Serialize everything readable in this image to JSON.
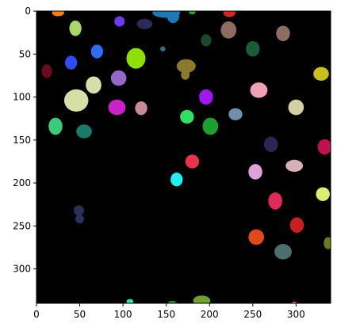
{
  "figure": {
    "background": "#ffffff",
    "image_background": "#000000",
    "image_extent": [
      0,
      340
    ]
  },
  "axes": {
    "x_ticks": [
      {
        "value": 0,
        "label": "0"
      },
      {
        "value": 50,
        "label": "50"
      },
      {
        "value": 100,
        "label": "100"
      },
      {
        "value": 150,
        "label": "150"
      },
      {
        "value": 200,
        "label": "200"
      },
      {
        "value": 250,
        "label": "250"
      },
      {
        "value": 300,
        "label": "300"
      }
    ],
    "y_ticks": [
      {
        "value": 0,
        "label": "0"
      },
      {
        "value": 50,
        "label": "50"
      },
      {
        "value": 100,
        "label": "100"
      },
      {
        "value": 150,
        "label": "150"
      },
      {
        "value": 200,
        "label": "200"
      },
      {
        "value": 250,
        "label": "250"
      },
      {
        "value": 300,
        "label": "300"
      }
    ]
  },
  "blobs": [
    {
      "x": 25,
      "y": 2,
      "rx": 7,
      "ry": 4,
      "color": "#ff7f0e"
    },
    {
      "x": 45,
      "y": 20,
      "rx": 7,
      "ry": 9,
      "color": "#a6d96a"
    },
    {
      "x": 96,
      "y": 12,
      "rx": 6,
      "ry": 6,
      "color": "#6a3df0"
    },
    {
      "x": 125,
      "y": 15,
      "rx": 9,
      "ry": 6,
      "color": "#2d2a5a"
    },
    {
      "x": 150,
      "y": 2,
      "rx": 16,
      "ry": 6,
      "color": "#1f77b4"
    },
    {
      "x": 158,
      "y": 6,
      "rx": 7,
      "ry": 8,
      "color": "#1f77b4"
    },
    {
      "x": 180,
      "y": 1,
      "rx": 4,
      "ry": 3,
      "color": "#2ca02c"
    },
    {
      "x": 223,
      "y": 2,
      "rx": 7,
      "ry": 5,
      "color": "#d62728"
    },
    {
      "x": 222,
      "y": 22,
      "rx": 9,
      "ry": 10,
      "color": "#8c6d62"
    },
    {
      "x": 196,
      "y": 34,
      "rx": 6,
      "ry": 7,
      "color": "#1a4a2e"
    },
    {
      "x": 285,
      "y": 26,
      "rx": 8,
      "ry": 9,
      "color": "#8c6d62"
    },
    {
      "x": 250,
      "y": 44,
      "rx": 8,
      "ry": 9,
      "color": "#1a5c3a"
    },
    {
      "x": 70,
      "y": 47,
      "rx": 7,
      "ry": 8,
      "color": "#2f6cf6"
    },
    {
      "x": 146,
      "y": 44,
      "rx": 3,
      "ry": 3,
      "color": "#3a6a8a"
    },
    {
      "x": 115,
      "y": 55,
      "rx": 11,
      "ry": 12,
      "color": "#8ee000"
    },
    {
      "x": 12,
      "y": 70,
      "rx": 6,
      "ry": 8,
      "color": "#6a0a20"
    },
    {
      "x": 40,
      "y": 60,
      "rx": 7,
      "ry": 8,
      "color": "#2f4cf6"
    },
    {
      "x": 173,
      "y": 64,
      "rx": 11,
      "ry": 8,
      "color": "#8b7a2e"
    },
    {
      "x": 172,
      "y": 74,
      "rx": 5,
      "ry": 6,
      "color": "#8b7a2e"
    },
    {
      "x": 329,
      "y": 73,
      "rx": 9,
      "ry": 8,
      "color": "#c9c020"
    },
    {
      "x": 66,
      "y": 86,
      "rx": 9,
      "ry": 10,
      "color": "#d4e0a6"
    },
    {
      "x": 95,
      "y": 78,
      "rx": 9,
      "ry": 9,
      "color": "#9468c8"
    },
    {
      "x": 46,
      "y": 104,
      "rx": 14,
      "ry": 13,
      "color": "#d4e0a6"
    },
    {
      "x": 93,
      "y": 112,
      "rx": 10,
      "ry": 9,
      "color": "#c823c8"
    },
    {
      "x": 121,
      "y": 113,
      "rx": 7,
      "ry": 8,
      "color": "#c98a98"
    },
    {
      "x": 196,
      "y": 100,
      "rx": 8,
      "ry": 9,
      "color": "#a117f0"
    },
    {
      "x": 257,
      "y": 92,
      "rx": 10,
      "ry": 9,
      "color": "#f0a0b4"
    },
    {
      "x": 300,
      "y": 112,
      "rx": 9,
      "ry": 9,
      "color": "#d4d0a0"
    },
    {
      "x": 174,
      "y": 123,
      "rx": 8,
      "ry": 8,
      "color": "#30e060"
    },
    {
      "x": 230,
      "y": 120,
      "rx": 8,
      "ry": 7,
      "color": "#7090b0"
    },
    {
      "x": 22,
      "y": 134,
      "rx": 8,
      "ry": 10,
      "color": "#3acb7a"
    },
    {
      "x": 55,
      "y": 140,
      "rx": 9,
      "ry": 8,
      "color": "#1a7a6a"
    },
    {
      "x": 201,
      "y": 134,
      "rx": 9,
      "ry": 10,
      "color": "#1ea030"
    },
    {
      "x": 271,
      "y": 155,
      "rx": 8,
      "ry": 9,
      "color": "#272754"
    },
    {
      "x": 333,
      "y": 158,
      "rx": 8,
      "ry": 9,
      "color": "#c01050"
    },
    {
      "x": 180,
      "y": 175,
      "rx": 8,
      "ry": 8,
      "color": "#e8344a"
    },
    {
      "x": 253,
      "y": 187,
      "rx": 8,
      "ry": 9,
      "color": "#e0a0d8"
    },
    {
      "x": 298,
      "y": 180,
      "rx": 10,
      "ry": 7,
      "color": "#d8b0b8"
    },
    {
      "x": 162,
      "y": 196,
      "rx": 7,
      "ry": 8,
      "color": "#20f0f0"
    },
    {
      "x": 331,
      "y": 213,
      "rx": 8,
      "ry": 8,
      "color": "#d8f070"
    },
    {
      "x": 49,
      "y": 232,
      "rx": 6,
      "ry": 6,
      "color": "#2b2f5a"
    },
    {
      "x": 50,
      "y": 242,
      "rx": 5,
      "ry": 5,
      "color": "#2b2f5a"
    },
    {
      "x": 276,
      "y": 221,
      "rx": 8,
      "ry": 10,
      "color": "#e02a5a"
    },
    {
      "x": 301,
      "y": 249,
      "rx": 8,
      "ry": 9,
      "color": "#c81f1f"
    },
    {
      "x": 254,
      "y": 263,
      "rx": 9,
      "ry": 9,
      "color": "#e04a1a"
    },
    {
      "x": 285,
      "y": 280,
      "rx": 10,
      "ry": 9,
      "color": "#4d6e6e"
    },
    {
      "x": 337,
      "y": 270,
      "rx": 5,
      "ry": 7,
      "color": "#6a7a1a"
    },
    {
      "x": 108,
      "y": 338,
      "rx": 4,
      "ry": 3,
      "color": "#30e8a0"
    },
    {
      "x": 157,
      "y": 340,
      "rx": 5,
      "ry": 3,
      "color": "#2a8a3a"
    },
    {
      "x": 191,
      "y": 337,
      "rx": 10,
      "ry": 6,
      "color": "#6fa030"
    },
    {
      "x": 298,
      "y": 340,
      "rx": 3,
      "ry": 2,
      "color": "#e87020"
    }
  ]
}
